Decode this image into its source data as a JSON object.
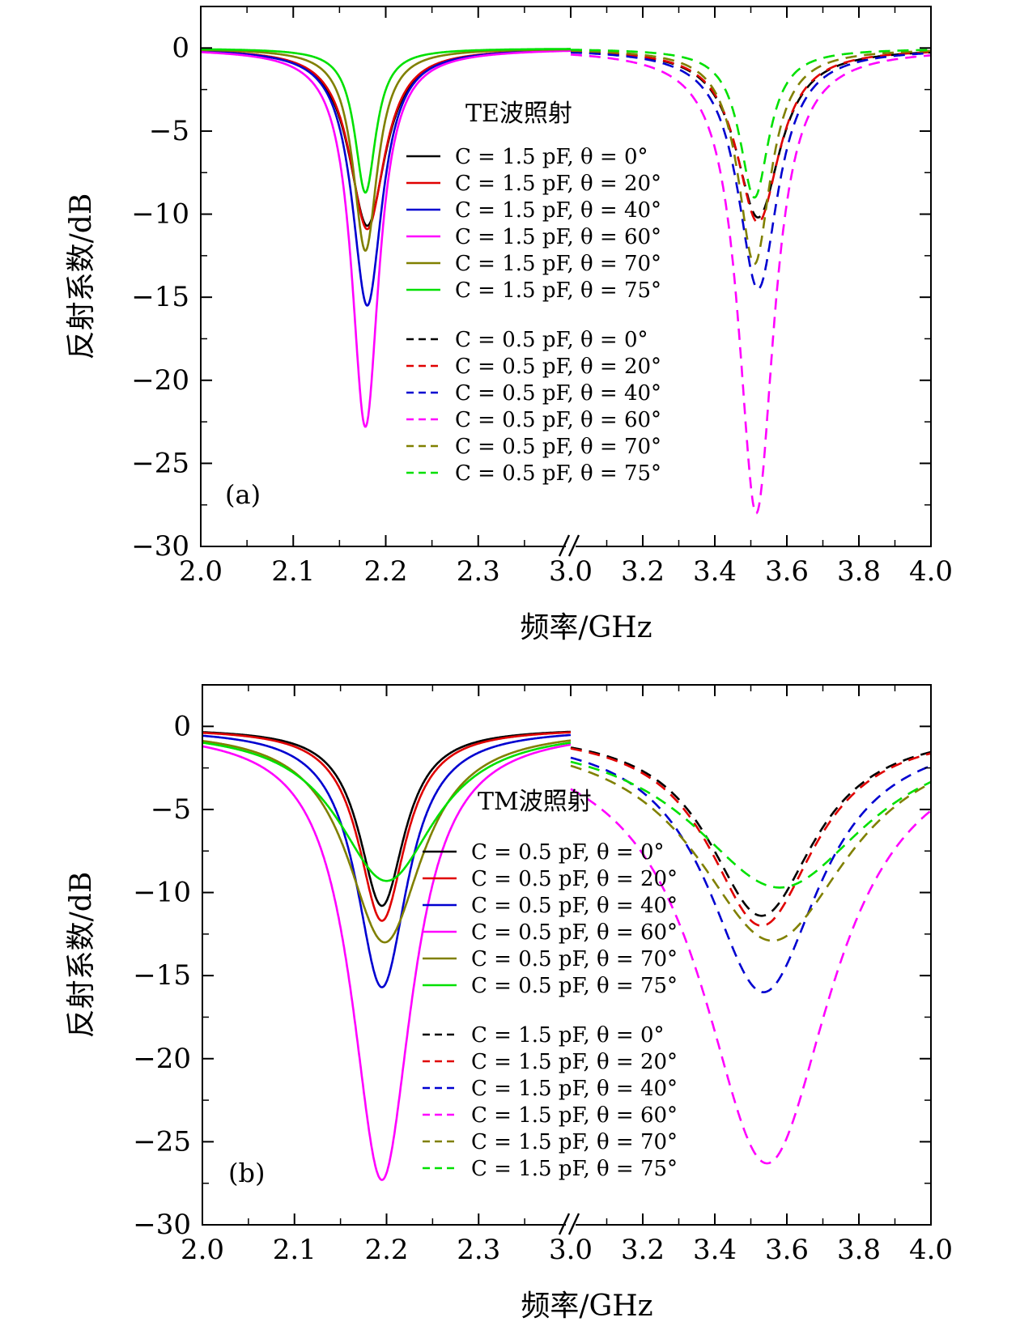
{
  "chart_data": [
    {
      "type": "line",
      "panel_label": "(a)",
      "xlabel": "频率/GHz",
      "ylabel": "反射系数/dB",
      "ylim": [
        -30,
        2.5
      ],
      "yticks": [
        "0",
        "−5",
        "−10",
        "−15",
        "−20",
        "−25",
        "−30"
      ],
      "yticks_values": [
        0,
        -5,
        -10,
        -15,
        -20,
        -25,
        -30
      ],
      "x_segments": [
        {
          "range": [
            2.0,
            2.4
          ],
          "ticks": [
            2.0,
            2.1,
            2.2,
            2.3
          ],
          "tick_labels": [
            "2.0",
            "2.1",
            "2.2",
            "2.3"
          ]
        },
        {
          "range": [
            3.0,
            4.0
          ],
          "ticks": [
            3.0,
            3.2,
            3.4,
            3.6,
            3.8,
            4.0
          ],
          "tick_labels": [
            "3.0",
            "3.2",
            "3.4",
            "3.6",
            "3.8",
            "4.0"
          ]
        }
      ],
      "axis_break": "between 2.4 and 3.0",
      "legend_title": "TE波照射",
      "legend_position": "center",
      "series": [
        {
          "name": "C = 1.5 pF, θ = 0°",
          "color": "#000000",
          "dash": "solid",
          "segment": 0,
          "dip_x": 2.18,
          "dip_y": -10.7,
          "width": 0.024,
          "baseline": -0.02
        },
        {
          "name": "C = 1.5 pF, θ = 20°",
          "color": "#e00000",
          "dash": "solid",
          "segment": 0,
          "dip_x": 2.18,
          "dip_y": -10.9,
          "width": 0.023,
          "baseline": -0.02
        },
        {
          "name": "C = 1.5 pF, θ = 40°",
          "color": "#0000d0",
          "dash": "solid",
          "segment": 0,
          "dip_x": 2.18,
          "dip_y": -15.5,
          "width": 0.02,
          "baseline": -0.02
        },
        {
          "name": "C = 1.5 pF, θ = 60°",
          "color": "#ff00ff",
          "dash": "solid",
          "segment": 0,
          "dip_x": 2.178,
          "dip_y": -22.8,
          "width": 0.018,
          "baseline": -0.02
        },
        {
          "name": "C = 1.5 pF, θ = 70°",
          "color": "#808000",
          "dash": "solid",
          "segment": 0,
          "dip_x": 2.178,
          "dip_y": -12.2,
          "width": 0.016,
          "baseline": -0.02
        },
        {
          "name": "C = 1.5 pF, θ = 75°",
          "color": "#00e000",
          "dash": "solid",
          "segment": 0,
          "dip_x": 2.178,
          "dip_y": -8.7,
          "width": 0.014,
          "baseline": -0.02
        },
        {
          "name": "C = 0.5 pF, θ = 0°",
          "color": "#000000",
          "dash": "dashed",
          "segment": 1,
          "dip_x": 3.52,
          "dip_y": -10.2,
          "width": 0.075,
          "baseline": -0.02
        },
        {
          "name": "C = 0.5 pF, θ = 20°",
          "color": "#e00000",
          "dash": "dashed",
          "segment": 1,
          "dip_x": 3.52,
          "dip_y": -10.5,
          "width": 0.072,
          "baseline": -0.02
        },
        {
          "name": "C = 0.5 pF, θ = 40°",
          "color": "#0000d0",
          "dash": "dashed",
          "segment": 1,
          "dip_x": 3.52,
          "dip_y": -14.5,
          "width": 0.068,
          "baseline": -0.02
        },
        {
          "name": "C = 0.5 pF, θ = 60°",
          "color": "#ff00ff",
          "dash": "dashed",
          "segment": 1,
          "dip_x": 3.515,
          "dip_y": -28.0,
          "width": 0.06,
          "baseline": -0.02
        },
        {
          "name": "C = 0.5 pF, θ = 70°",
          "color": "#808000",
          "dash": "dashed",
          "segment": 1,
          "dip_x": 3.51,
          "dip_y": -13.0,
          "width": 0.055,
          "baseline": -0.02
        },
        {
          "name": "C = 0.5 pF, θ = 75°",
          "color": "#00e000",
          "dash": "dashed",
          "segment": 1,
          "dip_x": 3.51,
          "dip_y": -9.0,
          "width": 0.05,
          "baseline": -0.02
        }
      ]
    },
    {
      "type": "line",
      "panel_label": "(b)",
      "xlabel": "频率/GHz",
      "ylabel": "反射系数/dB",
      "ylim": [
        -30,
        2.5
      ],
      "yticks": [
        "0",
        "−5",
        "−10",
        "−15",
        "−20",
        "−25",
        "−30"
      ],
      "yticks_values": [
        0,
        -5,
        -10,
        -15,
        -20,
        -25,
        -30
      ],
      "x_segments": [
        {
          "range": [
            2.0,
            2.4
          ],
          "ticks": [
            2.0,
            2.1,
            2.2,
            2.3
          ],
          "tick_labels": [
            "2.0",
            "2.1",
            "2.2",
            "2.3"
          ]
        },
        {
          "range": [
            3.0,
            4.0
          ],
          "ticks": [
            3.0,
            3.2,
            3.4,
            3.6,
            3.8,
            4.0
          ],
          "tick_labels": [
            "3.0",
            "3.2",
            "3.4",
            "3.6",
            "3.8",
            "4.0"
          ]
        }
      ],
      "axis_break": "between 2.4 and 3.0",
      "legend_title": "TM波照射",
      "legend_position": "center",
      "series": [
        {
          "name": "C = 0.5 pF, θ = 0°",
          "color": "#000000",
          "dash": "solid",
          "segment": 0,
          "dip_x": 2.195,
          "dip_y": -10.8,
          "width": 0.03,
          "baseline": -0.1
        },
        {
          "name": "C = 0.5 pF, θ = 20°",
          "color": "#e00000",
          "dash": "solid",
          "segment": 0,
          "dip_x": 2.195,
          "dip_y": -11.7,
          "width": 0.031,
          "baseline": -0.1
        },
        {
          "name": "C = 0.5 pF, θ = 40°",
          "color": "#0000d0",
          "dash": "solid",
          "segment": 0,
          "dip_x": 2.195,
          "dip_y": -15.7,
          "width": 0.034,
          "baseline": -0.1
        },
        {
          "name": "C = 0.5 pF, θ = 60°",
          "color": "#ff00ff",
          "dash": "solid",
          "segment": 0,
          "dip_x": 2.195,
          "dip_y": -27.3,
          "width": 0.04,
          "baseline": -0.1
        },
        {
          "name": "C = 0.5 pF, θ = 70°",
          "color": "#808000",
          "dash": "solid",
          "segment": 0,
          "dip_x": 2.198,
          "dip_y": -13.0,
          "width": 0.05,
          "baseline": -0.1
        },
        {
          "name": "C = 0.5 pF, θ = 75°",
          "color": "#00e000",
          "dash": "solid",
          "segment": 0,
          "dip_x": 2.2,
          "dip_y": -9.3,
          "width": 0.065,
          "baseline": -0.1
        },
        {
          "name": "C = 1.5 pF, θ = 0°",
          "color": "#000000",
          "dash": "dashed",
          "segment": 1,
          "dip_x": 3.53,
          "dip_y": -11.4,
          "width": 0.18,
          "baseline": -0.1
        },
        {
          "name": "C = 1.5 pF, θ = 20°",
          "color": "#e00000",
          "dash": "dashed",
          "segment": 1,
          "dip_x": 3.53,
          "dip_y": -12.0,
          "width": 0.18,
          "baseline": -0.1
        },
        {
          "name": "C = 1.5 pF, θ = 40°",
          "color": "#0000d0",
          "dash": "dashed",
          "segment": 1,
          "dip_x": 3.535,
          "dip_y": -16.0,
          "width": 0.19,
          "baseline": -0.1
        },
        {
          "name": "C = 1.5 pF, θ = 60°",
          "color": "#ff00ff",
          "dash": "dashed",
          "segment": 1,
          "dip_x": 3.545,
          "dip_y": -26.3,
          "width": 0.22,
          "baseline": -0.1
        },
        {
          "name": "C = 1.5 pF, θ = 70°",
          "color": "#808000",
          "dash": "dashed",
          "segment": 1,
          "dip_x": 3.56,
          "dip_y": -12.9,
          "width": 0.26,
          "baseline": -0.1
        },
        {
          "name": "C = 1.5 pF, θ = 75°",
          "color": "#00e000",
          "dash": "dashed",
          "segment": 1,
          "dip_x": 3.58,
          "dip_y": -9.7,
          "width": 0.3,
          "baseline": -0.1
        }
      ]
    }
  ]
}
